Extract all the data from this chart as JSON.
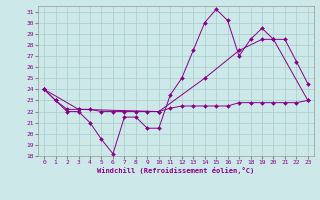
{
  "xlabel": "Windchill (Refroidissement éolien,°C)",
  "background_color": "#cce8e8",
  "grid_color": "#aacccc",
  "line_color": "#880088",
  "xlim": [
    -0.5,
    23.5
  ],
  "ylim": [
    18,
    31.5
  ],
  "yticks": [
    18,
    19,
    20,
    21,
    22,
    23,
    24,
    25,
    26,
    27,
    28,
    29,
    30,
    31
  ],
  "xticks": [
    0,
    1,
    2,
    3,
    4,
    5,
    6,
    7,
    8,
    9,
    10,
    11,
    12,
    13,
    14,
    15,
    16,
    17,
    18,
    19,
    20,
    21,
    22,
    23
  ],
  "series1_temp": [
    [
      0,
      24.0
    ],
    [
      1,
      23.0
    ],
    [
      2,
      22.2
    ],
    [
      3,
      22.2
    ],
    [
      4,
      22.2
    ],
    [
      5,
      22.0
    ],
    [
      6,
      22.0
    ],
    [
      7,
      22.0
    ],
    [
      8,
      22.0
    ],
    [
      9,
      22.0
    ],
    [
      10,
      22.0
    ],
    [
      11,
      22.3
    ],
    [
      12,
      22.5
    ],
    [
      13,
      22.5
    ],
    [
      14,
      22.5
    ],
    [
      15,
      22.5
    ],
    [
      16,
      22.5
    ],
    [
      17,
      22.8
    ],
    [
      18,
      22.8
    ],
    [
      19,
      22.8
    ],
    [
      20,
      22.8
    ],
    [
      21,
      22.8
    ],
    [
      22,
      22.8
    ],
    [
      23,
      23.0
    ]
  ],
  "series2_windchill": [
    [
      0,
      24.0
    ],
    [
      1,
      23.0
    ],
    [
      2,
      22.0
    ],
    [
      3,
      22.0
    ],
    [
      4,
      21.0
    ],
    [
      5,
      19.5
    ],
    [
      6,
      18.2
    ],
    [
      7,
      21.5
    ],
    [
      8,
      21.5
    ],
    [
      9,
      20.5
    ],
    [
      10,
      20.5
    ],
    [
      11,
      23.5
    ],
    [
      12,
      25.0
    ],
    [
      13,
      27.5
    ],
    [
      14,
      30.0
    ],
    [
      15,
      31.2
    ],
    [
      16,
      30.2
    ],
    [
      17,
      27.0
    ],
    [
      18,
      28.5
    ],
    [
      19,
      29.5
    ],
    [
      20,
      28.5
    ],
    [
      21,
      28.5
    ],
    [
      22,
      26.5
    ],
    [
      23,
      24.5
    ]
  ],
  "series3_smooth": [
    [
      0,
      24.0
    ],
    [
      3,
      22.2
    ],
    [
      10,
      22.0
    ],
    [
      14,
      25.0
    ],
    [
      17,
      27.5
    ],
    [
      19,
      28.5
    ],
    [
      20,
      28.5
    ],
    [
      23,
      23.0
    ]
  ]
}
